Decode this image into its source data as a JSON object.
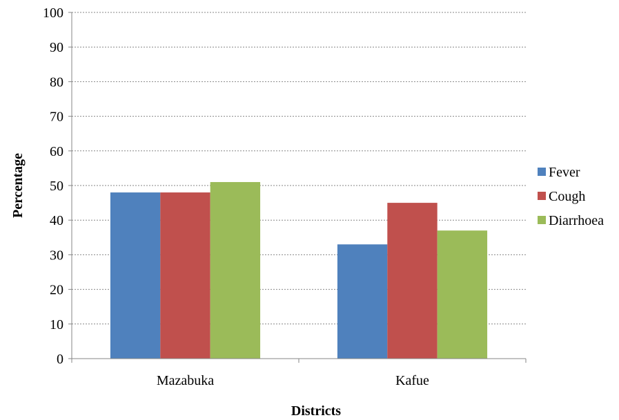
{
  "chart_data": {
    "type": "bar",
    "categories": [
      "Mazabuka",
      "Kafue"
    ],
    "series": [
      {
        "name": "Fever",
        "values": [
          48,
          33
        ],
        "color": "#4F81BD"
      },
      {
        "name": "Cough",
        "values": [
          48,
          45
        ],
        "color": "#C0504D"
      },
      {
        "name": "Diarrhoea",
        "values": [
          51,
          37
        ],
        "color": "#9BBB59"
      }
    ],
    "xlabel": "Districts",
    "ylabel": "Percentage",
    "ylim": [
      0,
      100
    ],
    "yticks": [
      0,
      10,
      20,
      30,
      40,
      50,
      60,
      70,
      80,
      90,
      100
    ],
    "grid": "horizontal dashed",
    "legend_position": "right"
  }
}
